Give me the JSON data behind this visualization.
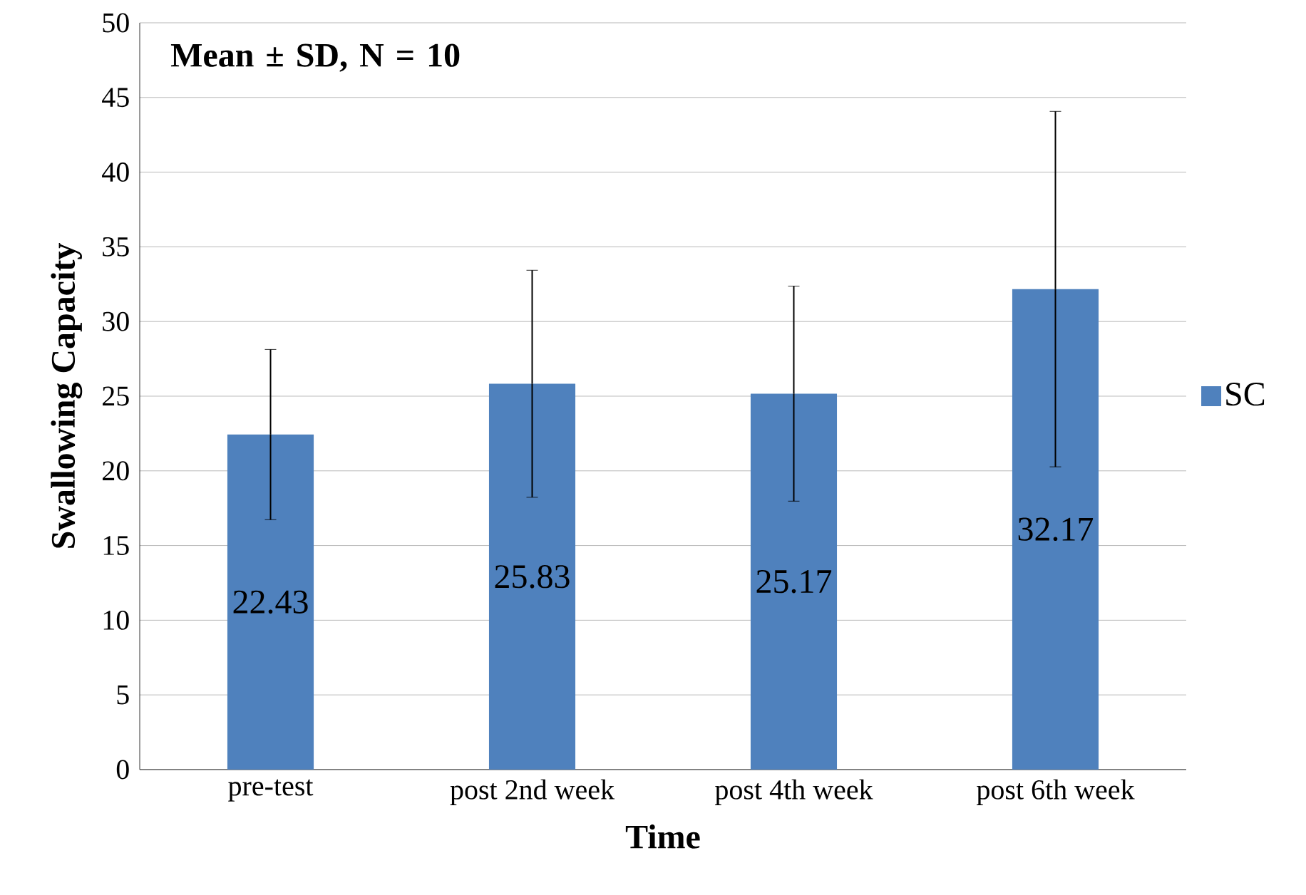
{
  "chart_data": {
    "type": "bar",
    "xlabel": "Time",
    "ylabel": "Swallowing Capacity",
    "annotations": [
      "**Mean ± SD, N = 10**"
    ],
    "categories": [
      "pre-test",
      "post 2nd week",
      "post 4th week",
      "post 6th week"
    ],
    "series": [
      {
        "name": "SC",
        "color": "#4f81bd",
        "values": [
          22.43,
          25.83,
          25.17,
          32.17
        ],
        "errors": [
          5.7,
          7.6,
          7.2,
          11.9
        ]
      }
    ],
    "ylim": [
      0,
      50
    ],
    "yticks": [
      0,
      5,
      10,
      15,
      20,
      25,
      30,
      35,
      40,
      45,
      50
    ],
    "grid": "y",
    "legend": "right",
    "data_labels": true
  }
}
